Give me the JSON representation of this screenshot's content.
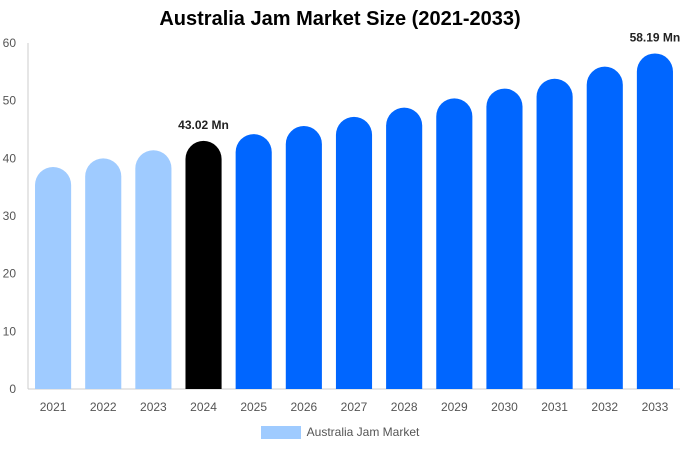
{
  "chart_data": {
    "type": "bar",
    "title": "Australia Jam Market Size (2021-2033)",
    "xlabel": "",
    "ylabel": "",
    "ylim": [
      0,
      60
    ],
    "yticks": [
      0,
      10,
      20,
      30,
      40,
      50,
      60
    ],
    "categories": [
      "2021",
      "2022",
      "2023",
      "2024",
      "2025",
      "2026",
      "2027",
      "2028",
      "2029",
      "2030",
      "2031",
      "2032",
      "2033"
    ],
    "series": [
      {
        "name": "Australia Jam Market",
        "values": [
          38.5,
          40.0,
          41.4,
          43.02,
          44.2,
          45.6,
          47.2,
          48.8,
          50.4,
          52.1,
          53.8,
          55.9,
          58.19
        ]
      }
    ],
    "data_labels": [
      {
        "category": "2024",
        "text": "43.02 Mn"
      },
      {
        "category": "2033",
        "text": "58.19 Mn"
      }
    ],
    "colors": {
      "historical": "#9fcbff",
      "base_year": "#000000",
      "forecast": "#0066ff",
      "legend": "#9fcbff"
    },
    "grid": false,
    "legend_position": "bottom"
  }
}
